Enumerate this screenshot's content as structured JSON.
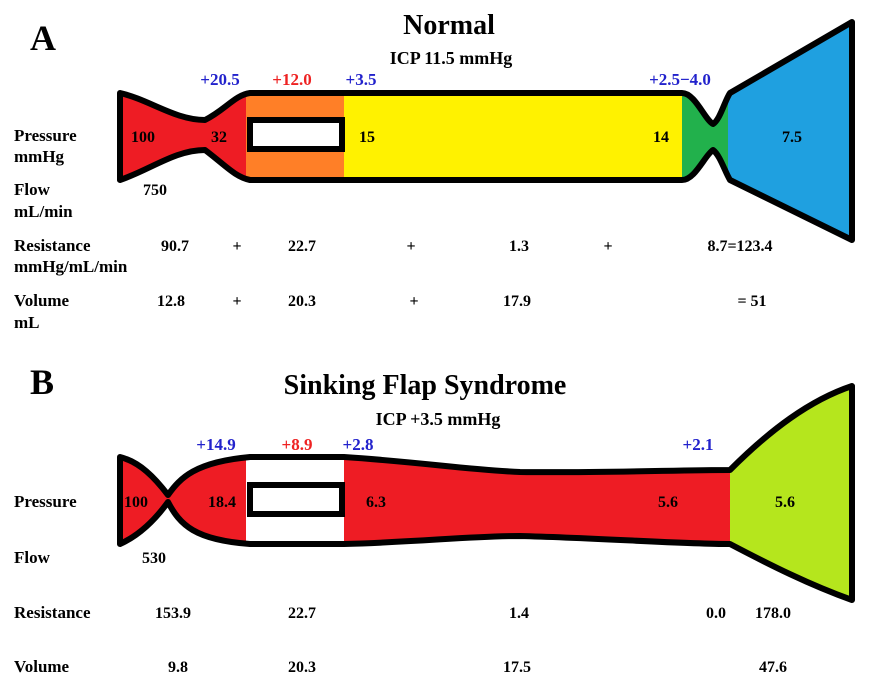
{
  "panelA": {
    "letter": "A",
    "title": "Normal",
    "icp": "ICP 11.5 mmHg",
    "gradients": [
      {
        "text": "+20.5",
        "color": "#2222cc"
      },
      {
        "text": "+12.0",
        "color": "#ee2222"
      },
      {
        "text": "+3.5",
        "color": "#2222cc"
      },
      {
        "text": "+2.5−4.0",
        "color": "#2222cc"
      }
    ],
    "labels": {
      "pressure1": "Pressure",
      "pressure2": "mmHg",
      "flow1": "Flow",
      "flow2": "mL/min",
      "resistance1": "Resistance",
      "resistance2": "mmHg/mL/min",
      "volume1": "Volume",
      "volume2": "mL"
    },
    "pressures": [
      "100",
      "32",
      "15",
      "14",
      "7.5"
    ],
    "flow": "750",
    "resistance": [
      "90.7",
      "+",
      "22.7",
      "+",
      "1.3",
      "+",
      "8.7=123.4"
    ],
    "volume": [
      "12.8",
      "+",
      "20.3",
      "+",
      "17.9",
      "=  51"
    ],
    "colors": {
      "seg1": "#ee1c24",
      "seg2": "#ff7f27",
      "seg3": "#fff200",
      "seg4": "#22b14c",
      "seg5": "#1fa0e0"
    }
  },
  "panelB": {
    "letter": "B",
    "title": "Sinking Flap Syndrome",
    "icp": "ICP +3.5 mmHg",
    "gradients": [
      {
        "text": "+14.9",
        "color": "#2222cc"
      },
      {
        "text": "+8.9",
        "color": "#ee2222"
      },
      {
        "text": "+2.8",
        "color": "#2222cc"
      },
      {
        "text": "+2.1",
        "color": "#2222cc"
      }
    ],
    "labels": {
      "pressure": "Pressure",
      "flow": "Flow",
      "resistance": "Resistance",
      "volume": "Volume"
    },
    "pressures": [
      "100",
      "18.4",
      "6.3",
      "5.6",
      "5.6"
    ],
    "flow": "530",
    "resistance": [
      "153.9",
      "22.7",
      "1.4",
      "0.0",
      "178.0"
    ],
    "volume": [
      "9.8",
      "20.3",
      "17.5",
      "47.6"
    ],
    "colors": {
      "seg1": "#ee1c24",
      "seg2": "#ffffff",
      "seg3": "#ee1c24",
      "seg4": "#b5e61d"
    }
  }
}
